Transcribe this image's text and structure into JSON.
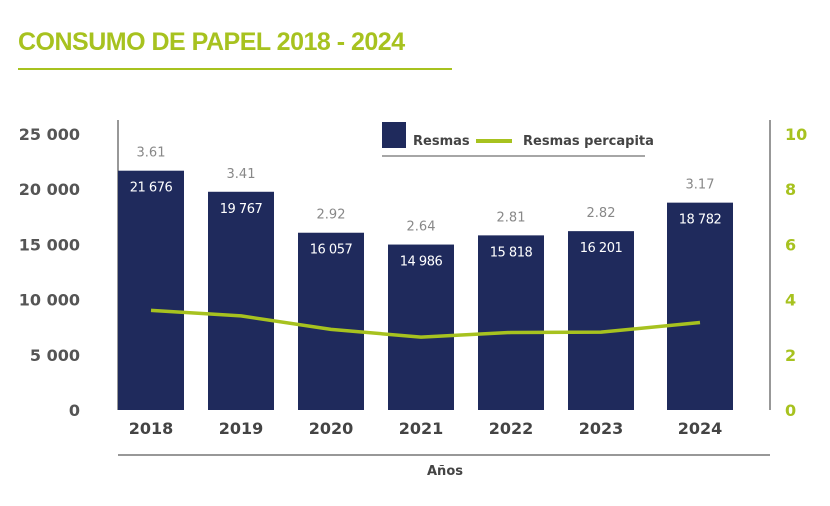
{
  "title": "CONSUMO DE PAPEL 2018 - 2024",
  "colors": {
    "bar": "#1f2a5c",
    "line": "#a7c21f",
    "title": "#a7c21f",
    "axis_text": "#555555"
  },
  "chart_data": {
    "type": "bar",
    "categories": [
      "2018",
      "2019",
      "2020",
      "2021",
      "2022",
      "2023",
      "2024"
    ],
    "series": [
      {
        "name": "Resmas",
        "type": "bar",
        "axis": "left",
        "values": [
          21676,
          19767,
          16057,
          14986,
          15818,
          16201,
          18782
        ],
        "labels": [
          "21 676",
          "19 767",
          "16 057",
          "14 986",
          "15 818",
          "16 201",
          "18 782"
        ]
      },
      {
        "name": "Resmas percapita",
        "type": "line",
        "axis": "right",
        "values": [
          3.61,
          3.41,
          2.92,
          2.64,
          2.81,
          2.82,
          3.17
        ],
        "labels": [
          "3.61",
          "3.41",
          "2.92",
          "2.64",
          "2.81",
          "2.82",
          "3.17"
        ]
      }
    ],
    "xlabel": "Años",
    "ylim": [
      0,
      25000
    ],
    "yticks": [
      "0",
      "5 000",
      "10 000",
      "15 000",
      "20 000",
      "25 000"
    ],
    "y2lim": [
      0,
      10
    ],
    "y2ticks": [
      "0",
      "2",
      "4",
      "6",
      "8",
      "10"
    ],
    "legend": "top-center",
    "grid": false
  }
}
